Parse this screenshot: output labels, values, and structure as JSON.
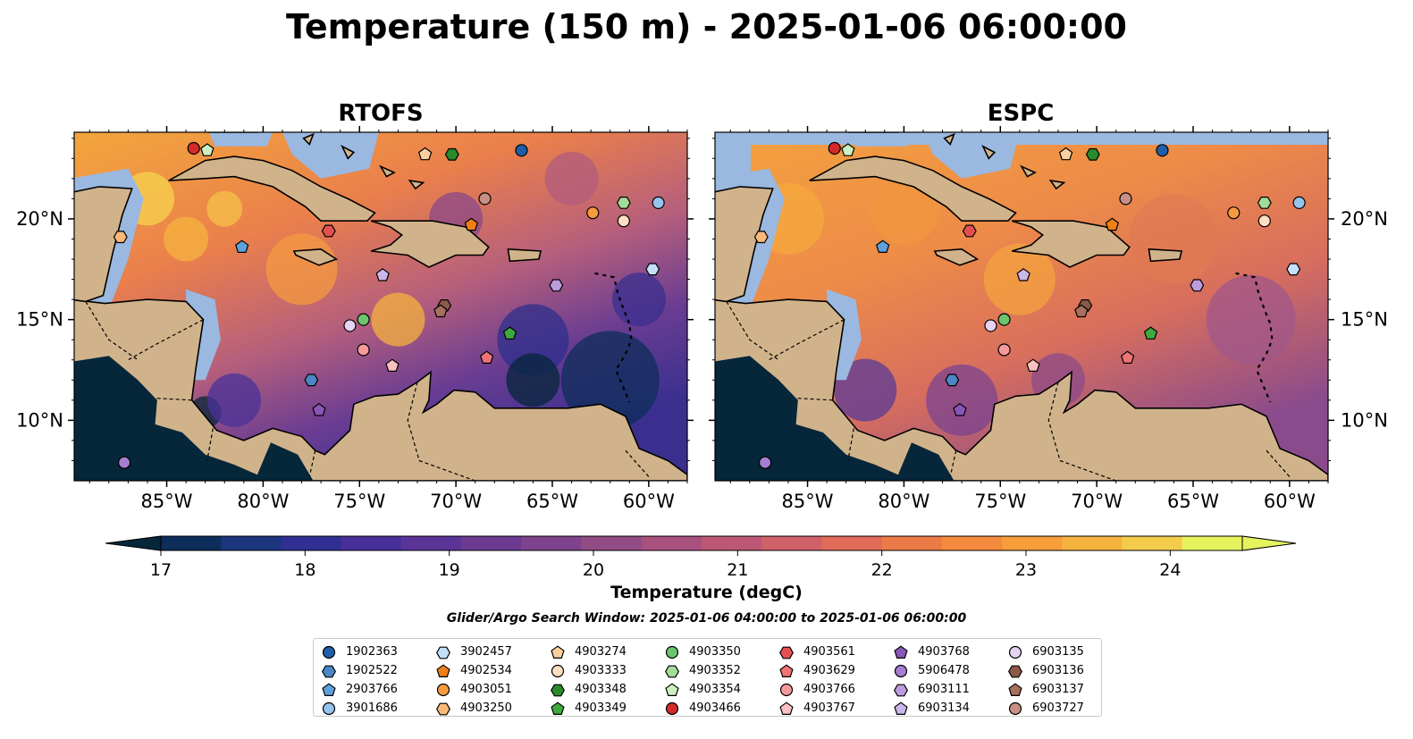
{
  "title": "Temperature (150 m) - 2025-01-06 06:00:00",
  "panels": [
    {
      "name": "RTOFS"
    },
    {
      "name": "ESPC"
    }
  ],
  "lon_ticks": [
    "85°W",
    "80°W",
    "75°W",
    "70°W",
    "65°W",
    "60°W"
  ],
  "lat_ticks": [
    "20°N",
    "15°N",
    "10°N"
  ],
  "extent": {
    "lon_min": -89.8,
    "lon_max": -58.0,
    "lat_min": 7.0,
    "lat_max": 24.3
  },
  "colorbar": {
    "label": "Temperature (degC)",
    "vmin": 17,
    "vmax": 24.5,
    "ticks": [
      "17",
      "18",
      "19",
      "20",
      "21",
      "22",
      "23",
      "24"
    ],
    "colors": [
      "#06263a",
      "#0d2d5a",
      "#1c357f",
      "#312f93",
      "#47309a",
      "#5b3497",
      "#6c3b91",
      "#7e438c",
      "#934b86",
      "#a8507e",
      "#bc5876",
      "#cf6168",
      "#e06b58",
      "#ec7a47",
      "#f38a3d",
      "#f69d3c",
      "#f5b43f",
      "#f3cc4c",
      "#e6f25e"
    ]
  },
  "search_window": "Glider/Argo Search Window: 2025-01-06 04:00:00 to 2025-01-06 06:00:00",
  "floats": [
    {
      "id": "1902363",
      "marker": "circle",
      "color": "#1f5fa8",
      "lon": -66.6,
      "lat": 23.4
    },
    {
      "id": "1902522",
      "marker": "hexagon",
      "color": "#4a87c4",
      "lon": -77.5,
      "lat": 12.0
    },
    {
      "id": "2903766",
      "marker": "pentagon",
      "color": "#5da2dc",
      "lon": -81.1,
      "lat": 18.6
    },
    {
      "id": "3901686",
      "marker": "circle",
      "color": "#96c3ec",
      "lon": -59.5,
      "lat": 20.8
    },
    {
      "id": "3902457",
      "marker": "hexagon",
      "color": "#c4e0f8",
      "lon": -59.8,
      "lat": 17.5
    },
    {
      "id": "4902534",
      "marker": "pentagon",
      "color": "#f07f18",
      "lon": -69.2,
      "lat": 19.7
    },
    {
      "id": "4903051",
      "marker": "circle",
      "color": "#f79a3d",
      "lon": -62.9,
      "lat": 20.3
    },
    {
      "id": "4903250",
      "marker": "hexagon",
      "color": "#fbb879",
      "lon": -87.4,
      "lat": 19.1
    },
    {
      "id": "4903274",
      "marker": "pentagon",
      "color": "#fccf9e",
      "lon": -71.6,
      "lat": 23.2
    },
    {
      "id": "4903333",
      "marker": "circle",
      "color": "#fde0c4",
      "lon": -61.3,
      "lat": 19.9
    },
    {
      "id": "4903348",
      "marker": "hexagon",
      "color": "#2a8a2a",
      "lon": -70.2,
      "lat": 23.2
    },
    {
      "id": "4903349",
      "marker": "pentagon",
      "color": "#3ea83e",
      "lon": -67.2,
      "lat": 14.3
    },
    {
      "id": "4903350",
      "marker": "circle",
      "color": "#6cc46c",
      "lon": -74.8,
      "lat": 15.0
    },
    {
      "id": "4903352",
      "marker": "hexagon",
      "color": "#a2dd98",
      "lon": -61.3,
      "lat": 20.8
    },
    {
      "id": "4903354",
      "marker": "pentagon",
      "color": "#cdf0c2",
      "lon": -82.9,
      "lat": 23.4
    },
    {
      "id": "4903466",
      "marker": "circle",
      "color": "#d42a2a",
      "lon": -83.6,
      "lat": 23.5
    },
    {
      "id": "4903561",
      "marker": "hexagon",
      "color": "#e45050",
      "lon": -76.6,
      "lat": 19.4
    },
    {
      "id": "4903629",
      "marker": "pentagon",
      "color": "#ef7474",
      "lon": -68.4,
      "lat": 13.1
    },
    {
      "id": "4903766",
      "marker": "circle",
      "color": "#f59a9a",
      "lon": -74.8,
      "lat": 13.5
    },
    {
      "id": "4903767",
      "marker": "pentagon",
      "color": "#fbc0c0",
      "lon": -73.3,
      "lat": 12.7
    },
    {
      "id": "4903768",
      "marker": "pentagon",
      "color": "#8a55b8",
      "lon": -77.1,
      "lat": 10.5
    },
    {
      "id": "5906478",
      "marker": "circle",
      "color": "#a47ed0",
      "lon": -87.2,
      "lat": 7.9
    },
    {
      "id": "6903111",
      "marker": "hexagon",
      "color": "#bb9ddd",
      "lon": -64.8,
      "lat": 16.7
    },
    {
      "id": "6903134",
      "marker": "pentagon",
      "color": "#cbb7ea",
      "lon": -73.8,
      "lat": 17.2
    },
    {
      "id": "6903135",
      "marker": "circle",
      "color": "#e5d2f5",
      "lon": -75.5,
      "lat": 14.7
    },
    {
      "id": "6903136",
      "marker": "hexagon",
      "color": "#8c5a4a",
      "lon": -70.6,
      "lat": 15.7
    },
    {
      "id": "6903137",
      "marker": "pentagon",
      "color": "#a8705e",
      "lon": -70.8,
      "lat": 15.4
    },
    {
      "id": "6903727",
      "marker": "circle",
      "color": "#c98f84",
      "lon": -68.5,
      "lat": 21.0
    }
  ]
}
